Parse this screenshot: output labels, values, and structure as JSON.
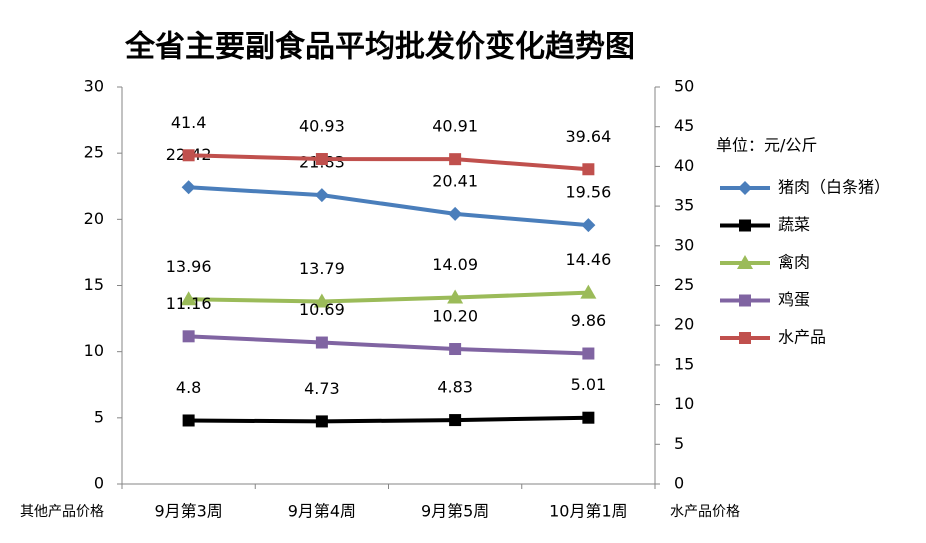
{
  "chart_data": {
    "type": "line",
    "title": "全省主要副食品平均批发价变化趋势图",
    "categories": [
      "9月第3周",
      "9月第4周",
      "9月第5周",
      "10月第1周"
    ],
    "ylim": [
      0,
      30
    ],
    "yticks": [
      0,
      5,
      10,
      15,
      20,
      25,
      30
    ],
    "y2lim": [
      0,
      50
    ],
    "y2ticks": [
      0,
      5,
      10,
      15,
      20,
      25,
      30,
      35,
      40,
      45,
      50
    ],
    "ylabel": "其他产品价格",
    "y2label": "水产品价格",
    "legend_title": "单位：元/公斤",
    "legend": "right",
    "series": [
      {
        "name": "猪肉（白条猪）",
        "color": "#4a7ebb",
        "marker": "diamond",
        "values": [
          22.42,
          21.83,
          20.41,
          19.56
        ]
      },
      {
        "name": "蔬菜",
        "color": "#000000",
        "marker": "square",
        "values": [
          4.8,
          4.73,
          4.83,
          5.01
        ]
      },
      {
        "name": "禽肉",
        "color": "#9bbb59",
        "marker": "triangle",
        "values": [
          13.96,
          13.79,
          14.09,
          14.46
        ]
      },
      {
        "name": "鸡蛋",
        "color": "#8064a2",
        "marker": "square",
        "values": [
          11.16,
          10.69,
          10.2,
          9.86
        ],
        "value_labels": [
          "11.16",
          "10.69",
          "10.20",
          "9.86"
        ]
      },
      {
        "name": "水产品",
        "color": "#c0504d",
        "marker": "square",
        "axis": "y2",
        "values": [
          41.4,
          40.93,
          40.91,
          39.64
        ]
      }
    ]
  }
}
